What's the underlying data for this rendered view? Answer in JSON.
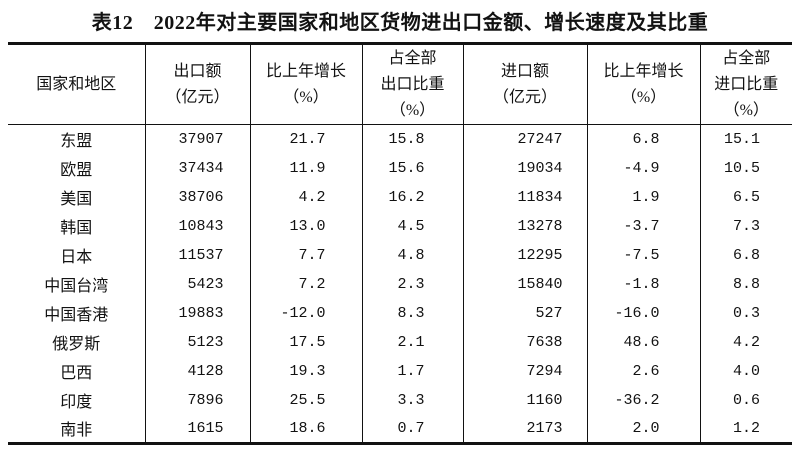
{
  "title": "表12　2022年对主要国家和地区货物进出口金额、增长速度及其比重",
  "colors": {
    "text": "#121212",
    "border": "#121212",
    "background": "#ffffff"
  },
  "table": {
    "headers": [
      {
        "lines": [
          "国家和地区"
        ]
      },
      {
        "lines": [
          "出口额",
          "（亿元）"
        ]
      },
      {
        "lines": [
          "比上年增长",
          "（%）"
        ]
      },
      {
        "lines": [
          "占全部",
          "出口比重",
          "（%）"
        ]
      },
      {
        "lines": [
          "进口额",
          "（亿元）"
        ]
      },
      {
        "lines": [
          "比上年增长",
          "（%）"
        ]
      },
      {
        "lines": [
          "占全部",
          "进口比重",
          "（%）"
        ]
      }
    ],
    "rows": [
      [
        "东盟",
        "37907",
        "21.7",
        "15.8",
        "27247",
        "6.8",
        "15.1"
      ],
      [
        "欧盟",
        "37434",
        "11.9",
        "15.6",
        "19034",
        "-4.9",
        "10.5"
      ],
      [
        "美国",
        "38706",
        "4.2",
        "16.2",
        "11834",
        "1.9",
        "6.5"
      ],
      [
        "韩国",
        "10843",
        "13.0",
        "4.5",
        "13278",
        "-3.7",
        "7.3"
      ],
      [
        "日本",
        "11537",
        "7.7",
        "4.8",
        "12295",
        "-7.5",
        "6.8"
      ],
      [
        "中国台湾",
        "5423",
        "7.2",
        "2.3",
        "15840",
        "-1.8",
        "8.8"
      ],
      [
        "中国香港",
        "19883",
        "-12.0",
        "8.3",
        "527",
        "-16.0",
        "0.3"
      ],
      [
        "俄罗斯",
        "5123",
        "17.5",
        "2.1",
        "7638",
        "48.6",
        "4.2"
      ],
      [
        "巴西",
        "4128",
        "19.3",
        "1.7",
        "7294",
        "2.6",
        "4.0"
      ],
      [
        "印度",
        "7896",
        "25.5",
        "3.3",
        "1160",
        "-36.2",
        "0.6"
      ],
      [
        "南非",
        "1615",
        "18.6",
        "0.7",
        "2173",
        "2.0",
        "1.2"
      ]
    ]
  }
}
